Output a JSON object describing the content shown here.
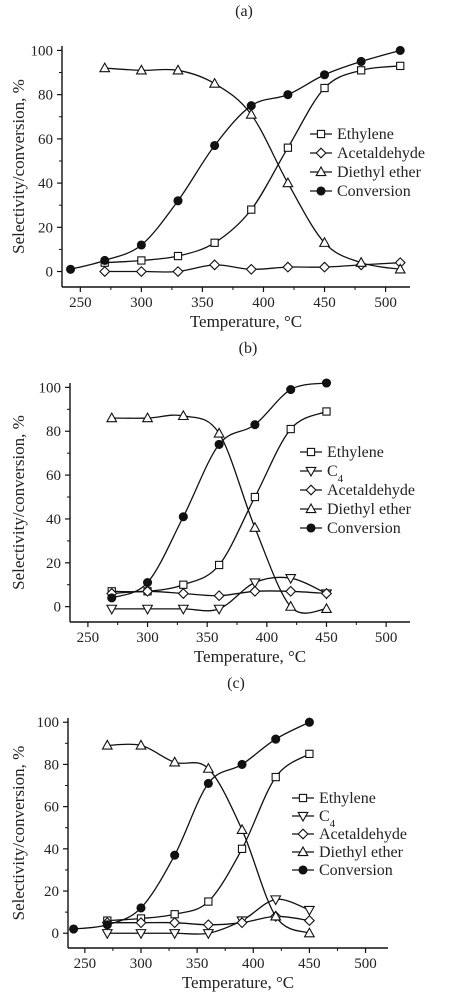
{
  "figure": {
    "background": "#ffffff",
    "ink": "#111111"
  },
  "chart_data": [
    {
      "type": "line",
      "panel_label": "(a)",
      "xlabel": "Temperature, °C",
      "ylabel": "Selectivity/conversion, %",
      "xlim": [
        235,
        520
      ],
      "ylim": [
        -7,
        102
      ],
      "xticks": [
        250,
        300,
        350,
        400,
        450,
        500
      ],
      "yticks": [
        0,
        20,
        40,
        60,
        80,
        100
      ],
      "grid": false,
      "legend_position": "right",
      "series": [
        {
          "name": "Ethylene",
          "marker": "square",
          "x": [
            270,
            300,
            330,
            360,
            390,
            420,
            450,
            480,
            512
          ],
          "y": [
            4,
            5,
            7,
            13,
            28,
            56,
            83,
            91,
            93
          ]
        },
        {
          "name": "Acetaldehyde",
          "marker": "diamond",
          "x": [
            270,
            300,
            330,
            360,
            390,
            420,
            450,
            480,
            512
          ],
          "y": [
            0,
            0,
            0,
            3,
            1,
            2,
            2,
            3,
            4
          ]
        },
        {
          "name": "Diethyl ether",
          "marker": "triangle-up",
          "x": [
            270,
            300,
            330,
            360,
            390,
            420,
            450,
            480,
            512
          ],
          "y": [
            92,
            91,
            91,
            85,
            71,
            40,
            13,
            4,
            1
          ]
        },
        {
          "name": "Conversion",
          "marker": "circle-filled",
          "x": [
            242,
            270,
            300,
            330,
            360,
            390,
            420,
            450,
            480,
            512
          ],
          "y": [
            1,
            5,
            12,
            32,
            57,
            75,
            80,
            89,
            95,
            100
          ]
        }
      ]
    },
    {
      "type": "line",
      "panel_label": "(b)",
      "xlabel": "Temperature, °C",
      "ylabel": "Selectivity/conversion, %",
      "xlim": [
        235,
        520
      ],
      "ylim": [
        -7,
        102
      ],
      "xticks": [
        250,
        300,
        350,
        400,
        450,
        500
      ],
      "yticks": [
        0,
        20,
        40,
        60,
        80,
        100
      ],
      "grid": false,
      "legend_position": "right",
      "series": [
        {
          "name": "Ethylene",
          "marker": "square",
          "x": [
            270,
            300,
            330,
            360,
            390,
            420,
            450
          ],
          "y": [
            7,
            7,
            10,
            19,
            50,
            81,
            89
          ]
        },
        {
          "name": "C4",
          "marker": "triangle-down",
          "x": [
            270,
            300,
            330,
            360,
            390,
            420,
            450
          ],
          "y": [
            -1,
            -1,
            -1,
            -1,
            11,
            13,
            6
          ]
        },
        {
          "name": "Acetaldehyde",
          "marker": "diamond",
          "x": [
            270,
            300,
            330,
            360,
            390,
            420,
            450
          ],
          "y": [
            6,
            7,
            6,
            5,
            7,
            7,
            6
          ]
        },
        {
          "name": "Diethyl ether",
          "marker": "triangle-up",
          "x": [
            270,
            300,
            330,
            360,
            390,
            420,
            450
          ],
          "y": [
            86,
            86,
            87,
            79,
            36,
            0,
            -1
          ]
        },
        {
          "name": "Conversion",
          "marker": "circle-filled",
          "x": [
            270,
            300,
            330,
            360,
            390,
            420,
            450
          ],
          "y": [
            4,
            11,
            41,
            74,
            83,
            99,
            102
          ]
        }
      ]
    },
    {
      "type": "line",
      "panel_label": "(c)",
      "xlabel": "Temperature, °C",
      "ylabel": "Selectivity/conversion, %",
      "xlim": [
        235,
        520
      ],
      "ylim": [
        -7,
        102
      ],
      "xticks": [
        250,
        300,
        350,
        400,
        450,
        500
      ],
      "yticks": [
        0,
        20,
        40,
        60,
        80,
        100
      ],
      "grid": false,
      "legend_position": "right",
      "series": [
        {
          "name": "Ethylene",
          "marker": "square",
          "x": [
            270,
            300,
            330,
            360,
            390,
            420,
            450
          ],
          "y": [
            6,
            7,
            9,
            15,
            40,
            74,
            85
          ]
        },
        {
          "name": "C4",
          "marker": "triangle-down",
          "x": [
            270,
            300,
            330,
            360,
            390,
            420,
            450
          ],
          "y": [
            0,
            0,
            0,
            0,
            6,
            16,
            11
          ]
        },
        {
          "name": "Acetaldehyde",
          "marker": "diamond",
          "x": [
            270,
            300,
            330,
            360,
            390,
            420,
            450
          ],
          "y": [
            5,
            5,
            5,
            4,
            5,
            8,
            6
          ]
        },
        {
          "name": "Diethyl ether",
          "marker": "triangle-up",
          "x": [
            270,
            300,
            330,
            360,
            390,
            420,
            450
          ],
          "y": [
            89,
            89,
            81,
            78,
            49,
            8,
            0
          ]
        },
        {
          "name": "Conversion",
          "marker": "circle-filled",
          "x": [
            240,
            270,
            300,
            330,
            360,
            390,
            420,
            450
          ],
          "y": [
            2,
            4,
            12,
            37,
            71,
            80,
            92,
            100
          ]
        }
      ]
    }
  ]
}
